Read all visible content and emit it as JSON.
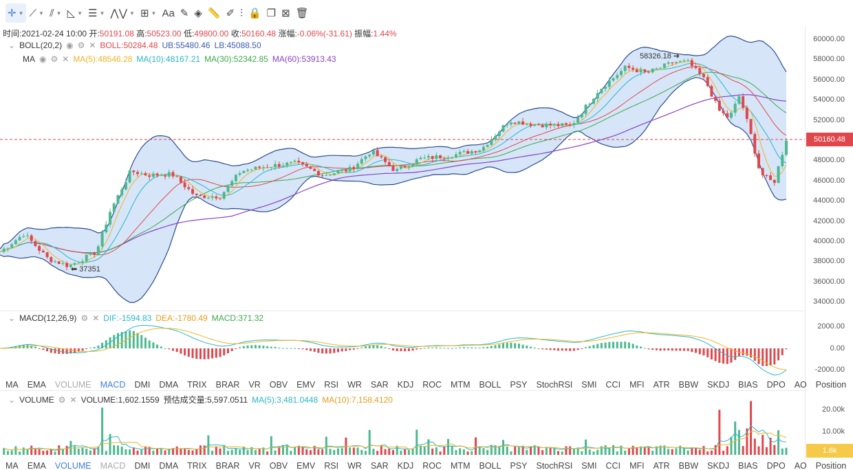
{
  "toolbar": {
    "tools": [
      {
        "name": "crosshair-icon",
        "glyph": "✛",
        "active": true,
        "caret": true
      },
      {
        "name": "trendline-icon",
        "glyph": "⟋",
        "caret": true
      },
      {
        "name": "multiline-icon",
        "glyph": "⫽",
        "caret": true
      },
      {
        "name": "angle-icon",
        "glyph": "◺",
        "caret": true
      },
      {
        "name": "horizontal-lines-icon",
        "glyph": "☰",
        "caret": true
      },
      {
        "name": "wave-icon",
        "glyph": "⋀⋁",
        "caret": true
      },
      {
        "name": "rect-tools-icon",
        "glyph": "⊞",
        "caret": true
      },
      {
        "name": "text-icon",
        "glyph": "Aa",
        "caret": false
      },
      {
        "name": "brush-icon",
        "glyph": "✎",
        "caret": false
      },
      {
        "name": "eraser-icon",
        "glyph": "◈",
        "caret": false
      },
      {
        "name": "ruler-icon",
        "glyph": "📏",
        "caret": false
      },
      {
        "name": "pencil-icon",
        "glyph": "✐",
        "caret": false
      },
      {
        "name": "measure-icon",
        "glyph": "⫶",
        "caret": false
      },
      {
        "name": "lock-icon",
        "glyph": "🔒",
        "caret": false
      },
      {
        "name": "copy-icon",
        "glyph": "❐",
        "caret": false
      },
      {
        "name": "hide-icon",
        "glyph": "⊠",
        "caret": false
      },
      {
        "name": "trash-icon",
        "glyph": "🗑",
        "caret": false
      }
    ]
  },
  "ohlc": {
    "time_label": "时间:",
    "time": "2021-02-24 10:00",
    "open_label": "开:",
    "open": "50191.08",
    "high_label": "高:",
    "high": "50523.00",
    "low_label": "低:",
    "low": "49800.00",
    "close_label": "收:",
    "close": "50160.48",
    "change_label": "涨幅:",
    "change": "-0.06%(-31.61)",
    "amp_label": "振幅:",
    "amp": "1.44%"
  },
  "boll": {
    "name": "BOLL(20,2)",
    "mid": "BOLL:50284.48",
    "ub": "UB:55480.46",
    "lb": "LB:45088.50"
  },
  "ma": {
    "name": "MA",
    "ma5": "MA(5):48546.28",
    "ma10": "MA(10):48167.21",
    "ma30": "MA(30):52342.85",
    "ma60": "MA(60):53913.43"
  },
  "price_axis": [
    "60000.00",
    "58000.00",
    "56000.00",
    "54000.00",
    "52000.00",
    "50000.00",
    "48000.00",
    "46000.00",
    "44000.00",
    "42000.00",
    "40000.00",
    "38000.00",
    "36000.00",
    "34000.00"
  ],
  "price_current": "50160.48",
  "annotations": {
    "high": "58326.18 ➔",
    "low": "⬅ 37351"
  },
  "macd": {
    "name": "MACD(12,26,9)",
    "dif": "DIF:-1594.83",
    "dea": "DEA:-1780.49",
    "macd": "MACD:371.32"
  },
  "macd_axis": [
    "2000.00",
    "0.00",
    "-2000.00"
  ],
  "indicator_tabs": [
    "MA",
    "EMA",
    "VOLUME",
    "MACD",
    "DMI",
    "DMA",
    "TRIX",
    "BRAR",
    "VR",
    "OBV",
    "EMV",
    "RSI",
    "WR",
    "SAR",
    "KDJ",
    "ROC",
    "MTM",
    "BOLL",
    "PSY",
    "StochRSI",
    "SMI",
    "CCI",
    "MFI",
    "ATR",
    "BBW",
    "SKDJ",
    "BIAS",
    "DPO",
    "AO",
    "Position"
  ],
  "tabs_row1_active": "MACD",
  "tabs_row1_muted": "VOLUME",
  "tabs_row2_active": "VOLUME",
  "tabs_row2_muted": "MACD",
  "volume": {
    "name": "VOLUME",
    "vol": "VOLUME:1,602.1559",
    "est": "预估成交量:5,597.0511",
    "ma5": "MA(5):3,481.0448",
    "ma10": "MA(10):7,158.4120"
  },
  "volume_axis": [
    "20.00k",
    "10.00k"
  ],
  "volume_current": "1.6k",
  "colors": {
    "up": "#4cb88f",
    "down": "#e0474c",
    "band_fill": "#cfe2f7",
    "band_line": "#2c4a8c",
    "boll_mid": "#e0474c",
    "ma5": "#f0b323",
    "ma10": "#27b5c9",
    "ma30": "#3aa84a",
    "ma60": "#8a3fc9",
    "accent": "#3d7be0"
  }
}
